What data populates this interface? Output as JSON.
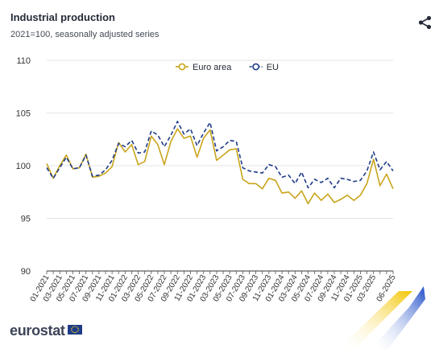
{
  "header": {
    "title": "Industrial production",
    "subtitle": "2021=100, seasonally adjusted series",
    "share_icon": "share-icon"
  },
  "brand": {
    "name": "eurostat",
    "flag_icon": "eu-flag-icon"
  },
  "chart_data": {
    "type": "line",
    "title": "Industrial production",
    "subtitle": "2021=100, seasonally adjusted series",
    "ylim": [
      90,
      110
    ],
    "yticks": [
      90,
      95,
      100,
      105,
      110
    ],
    "grid": true,
    "legend_position": "top-center",
    "x": [
      "01-2021",
      "02-2021",
      "03-2021",
      "04-2021",
      "05-2021",
      "06-2021",
      "07-2021",
      "08-2021",
      "09-2021",
      "10-2021",
      "11-2021",
      "12-2021",
      "01-2022",
      "02-2022",
      "03-2022",
      "04-2022",
      "05-2022",
      "06-2022",
      "07-2022",
      "08-2022",
      "09-2022",
      "10-2022",
      "11-2022",
      "12-2022",
      "01-2023",
      "02-2023",
      "03-2023",
      "04-2023",
      "05-2023",
      "06-2023",
      "07-2023",
      "08-2023",
      "09-2023",
      "10-2023",
      "11-2023",
      "12-2023",
      "01-2024",
      "02-2024",
      "03-2024",
      "04-2024",
      "05-2024",
      "06-2024",
      "07-2024",
      "08-2024",
      "09-2024",
      "10-2024",
      "11-2024",
      "12-2024",
      "01-2025",
      "02-2025",
      "03-2025",
      "04-2025",
      "05-2025",
      "06-2025"
    ],
    "xtick_labels": [
      "01-2021",
      "03-2021",
      "05-2021",
      "07-2021",
      "09-2021",
      "11-2021",
      "01-2022",
      "03-2022",
      "05-2022",
      "07-2022",
      "09-2022",
      "11-2022",
      "01-2023",
      "03-2023",
      "05-2023",
      "07-2023",
      "09-2023",
      "11-2023",
      "01-2024",
      "03-2024",
      "05-2024",
      "07-2024",
      "09-2024",
      "11-2024",
      "01-2025",
      "03-2025",
      "06-2025"
    ],
    "series": [
      {
        "name": "Euro area",
        "color": "#c9a51b",
        "dash": "solid",
        "values": [
          100.2,
          98.8,
          100.0,
          101.0,
          99.7,
          99.8,
          101.1,
          98.9,
          99.0,
          99.3,
          99.9,
          102.2,
          101.3,
          102.0,
          100.1,
          100.4,
          102.8,
          102.0,
          100.1,
          102.3,
          103.5,
          102.6,
          102.8,
          100.8,
          102.6,
          103.4,
          100.5,
          101.0,
          101.5,
          101.6,
          98.7,
          98.3,
          98.3,
          97.8,
          98.8,
          98.6,
          97.4,
          97.5,
          96.9,
          97.6,
          96.4,
          97.4,
          96.7,
          97.3,
          96.5,
          96.8,
          97.2,
          96.7,
          97.2,
          98.3,
          100.6,
          98.1,
          99.2,
          97.8
        ]
      },
      {
        "name": "EU",
        "color": "#1f3c88",
        "dash": "dashed",
        "values": [
          99.8,
          98.8,
          99.8,
          100.8,
          99.7,
          99.8,
          101.0,
          99.0,
          99.1,
          99.6,
          100.5,
          102.1,
          101.8,
          102.4,
          101.2,
          101.3,
          103.3,
          102.9,
          101.8,
          102.9,
          104.2,
          103.0,
          103.5,
          101.9,
          103.1,
          104.1,
          101.4,
          101.8,
          102.4,
          102.3,
          99.8,
          99.5,
          99.4,
          99.3,
          100.1,
          99.9,
          98.9,
          99.1,
          98.3,
          99.4,
          97.9,
          98.7,
          98.4,
          98.8,
          97.9,
          98.8,
          98.7,
          98.5,
          98.6,
          99.5,
          101.3,
          99.6,
          100.4,
          99.5
        ]
      }
    ]
  }
}
